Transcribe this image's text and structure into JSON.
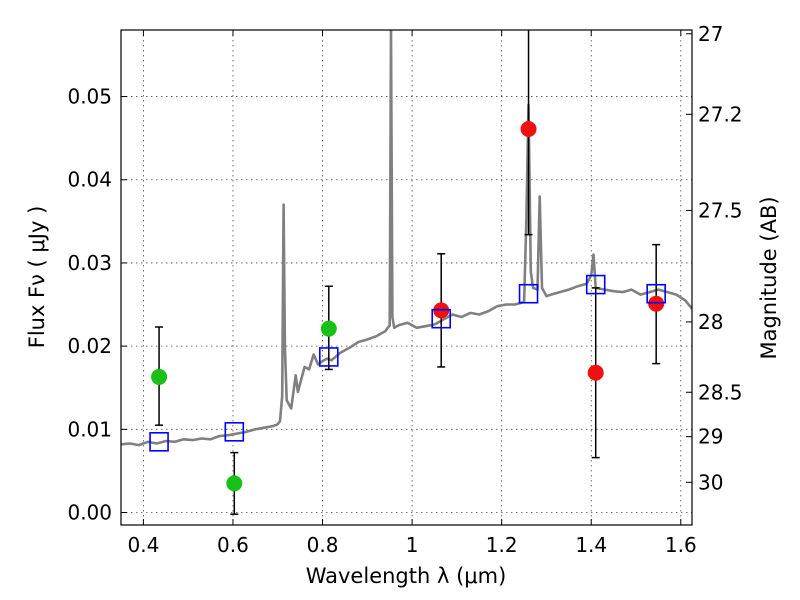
{
  "chart_data": {
    "type": "scatter",
    "xlabel": "Wavelength  λ (μm)",
    "ylabel": "Flux  Fν  ( μJy )",
    "y2label": "Magnitude (AB)",
    "xlim": [
      0.35,
      1.625
    ],
    "ylim": [
      -0.0015,
      0.058
    ],
    "x_ticks": [
      0.4,
      0.6,
      0.8,
      1.0,
      1.2,
      1.4,
      1.6
    ],
    "x_tick_labels": [
      "0.4",
      "0.6",
      "0.8",
      "1",
      "1.2",
      "1.4",
      "1.6"
    ],
    "y_ticks": [
      0.0,
      0.01,
      0.02,
      0.03,
      0.04,
      0.05
    ],
    "y_tick_labels": [
      "0.00",
      "0.01",
      "0.02",
      "0.03",
      "0.04",
      "0.05"
    ],
    "mag_ticks": [
      27,
      27.2,
      27.5,
      28,
      28.5,
      29,
      30
    ],
    "mag_tick_labels": [
      "27",
      "27.2",
      "27.5",
      "28",
      "28.5",
      "29",
      "30"
    ],
    "grid": true,
    "colors": {
      "spectrum": "#808080",
      "green": "#18c018",
      "red": "#f01010",
      "model": "#0000ff",
      "errorbar": "#000000"
    },
    "spectrum": {
      "x": [
        0.35,
        0.37,
        0.39,
        0.41,
        0.43,
        0.45,
        0.47,
        0.49,
        0.51,
        0.53,
        0.55,
        0.57,
        0.59,
        0.61,
        0.63,
        0.65,
        0.67,
        0.69,
        0.7,
        0.705,
        0.71,
        0.713,
        0.716,
        0.72,
        0.73,
        0.74,
        0.745,
        0.75,
        0.76,
        0.77,
        0.78,
        0.79,
        0.8,
        0.81,
        0.82,
        0.84,
        0.86,
        0.88,
        0.9,
        0.92,
        0.94,
        0.95,
        0.953,
        0.956,
        0.96,
        0.97,
        0.99,
        1.01,
        1.03,
        1.05,
        1.07,
        1.09,
        1.11,
        1.13,
        1.15,
        1.17,
        1.19,
        1.21,
        1.23,
        1.25,
        1.255,
        1.26,
        1.265,
        1.27,
        1.28,
        1.285,
        1.29,
        1.3,
        1.31,
        1.33,
        1.35,
        1.37,
        1.39,
        1.4,
        1.405,
        1.41,
        1.43,
        1.45,
        1.47,
        1.49,
        1.51,
        1.53,
        1.55,
        1.57,
        1.59,
        1.61,
        1.625
      ],
      "y": [
        0.0082,
        0.0083,
        0.0081,
        0.0085,
        0.0083,
        0.0086,
        0.0085,
        0.0088,
        0.0087,
        0.0089,
        0.0088,
        0.0092,
        0.0093,
        0.0095,
        0.0097,
        0.01,
        0.0102,
        0.0104,
        0.0106,
        0.011,
        0.014,
        0.037,
        0.02,
        0.0135,
        0.0125,
        0.0165,
        0.0145,
        0.0155,
        0.0175,
        0.0172,
        0.019,
        0.0178,
        0.0182,
        0.0185,
        0.0183,
        0.0192,
        0.0198,
        0.0205,
        0.0208,
        0.0212,
        0.0218,
        0.0225,
        0.058,
        0.0235,
        0.0222,
        0.0225,
        0.0228,
        0.0222,
        0.0224,
        0.0226,
        0.0232,
        0.0238,
        0.0235,
        0.024,
        0.0238,
        0.0242,
        0.0248,
        0.025,
        0.025,
        0.0253,
        0.035,
        0.049,
        0.029,
        0.027,
        0.0268,
        0.038,
        0.027,
        0.026,
        0.0262,
        0.0265,
        0.0268,
        0.0272,
        0.0275,
        0.0285,
        0.031,
        0.027,
        0.0268,
        0.0266,
        0.0265,
        0.0268,
        0.0262,
        0.0265,
        0.0268,
        0.0265,
        0.0262,
        0.0255,
        0.0245
      ]
    },
    "series": [
      {
        "marker": "circle",
        "color": "green",
        "points": [
          {
            "x": 0.435,
            "y": 0.0163,
            "lo": 0.0105,
            "hi": 0.0223
          },
          {
            "x": 0.603,
            "y": 0.0035,
            "lo": -0.0002,
            "hi": 0.0072
          },
          {
            "x": 0.814,
            "y": 0.0221,
            "lo": 0.0172,
            "hi": 0.0272
          }
        ]
      },
      {
        "marker": "circle",
        "color": "red",
        "points": [
          {
            "x": 1.065,
            "y": 0.0243,
            "lo": 0.0175,
            "hi": 0.0311
          },
          {
            "x": 1.26,
            "y": 0.0461,
            "lo": 0.0334,
            "hi": 0.0588
          },
          {
            "x": 1.41,
            "y": 0.0168,
            "lo": 0.0066,
            "hi": 0.027
          },
          {
            "x": 1.545,
            "y": 0.0251,
            "lo": 0.0179,
            "hi": 0.0322
          }
        ]
      },
      {
        "marker": "square",
        "color": "model",
        "points": [
          {
            "x": 0.435,
            "y": 0.0085
          },
          {
            "x": 0.603,
            "y": 0.0097
          },
          {
            "x": 0.814,
            "y": 0.0187
          },
          {
            "x": 1.065,
            "y": 0.0233
          },
          {
            "x": 1.26,
            "y": 0.0263
          },
          {
            "x": 1.41,
            "y": 0.0274
          },
          {
            "x": 1.545,
            "y": 0.0263
          }
        ]
      }
    ]
  }
}
